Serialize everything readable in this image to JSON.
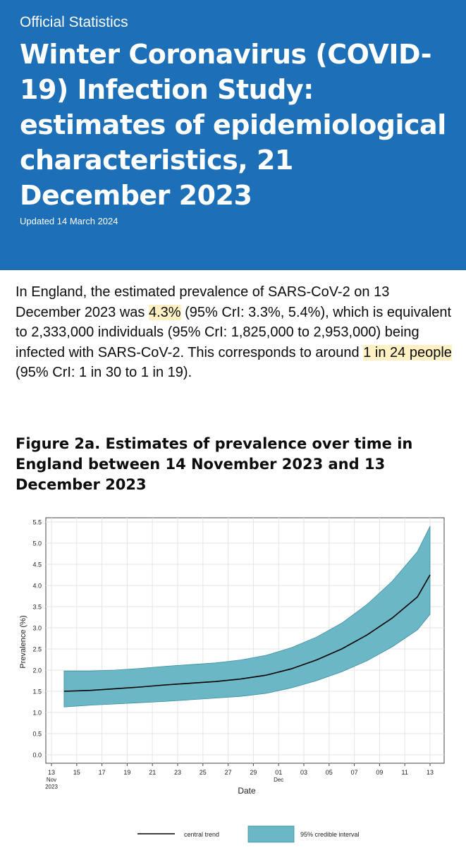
{
  "header": {
    "caption": "Official Statistics",
    "title": "Winter Coronavirus (COVID-19) Infection Study: estimates of epidemiological characteristics, 21 December 2023",
    "updated": "Updated 14 March 2024"
  },
  "summary": {
    "part1": "In England, the estimated prevalence of SARS-CoV-2 on 13 December 2023 was ",
    "highlight1": "4.3%",
    "part2": " (95% CrI: 3.3%, 5.4%), which is equivalent to 2,333,000 individuals (95% CrI: 1,825,000 to 2,953,000) being infected with SARS-CoV-2. This corresponds to around ",
    "highlight2": "1 in 24 people",
    "part3": " (95% CrI: 1 in 30 to 1 in 19)."
  },
  "figure": {
    "title": "Figure 2a. Estimates of prevalence over time in England between 14 November 2023 and 13 December 2023"
  },
  "colors": {
    "header_bg": "#1d70b8",
    "highlight": "#fff1c4",
    "interval_fill": "#6bb7c5",
    "interval_edge": "#3d8fa0",
    "trend_line": "#000000"
  },
  "chart_data": {
    "type": "area",
    "title": "",
    "xlabel": "Date",
    "ylabel": "Prevalence (%)",
    "ylim": [
      -0.2,
      5.6
    ],
    "yticks": [
      "0.0",
      "0.5",
      "1.0",
      "1.5",
      "2.0",
      "2.5",
      "3.0",
      "3.5",
      "4.0",
      "4.5",
      "5.0",
      "5.5"
    ],
    "x_tick_labels": [
      {
        "day": 0,
        "lines": [
          "13",
          "Nov",
          "2023"
        ]
      },
      {
        "day": 2,
        "lines": [
          "15"
        ]
      },
      {
        "day": 4,
        "lines": [
          "17"
        ]
      },
      {
        "day": 6,
        "lines": [
          "19"
        ]
      },
      {
        "day": 8,
        "lines": [
          "21"
        ]
      },
      {
        "day": 10,
        "lines": [
          "23"
        ]
      },
      {
        "day": 12,
        "lines": [
          "25"
        ]
      },
      {
        "day": 14,
        "lines": [
          "27"
        ]
      },
      {
        "day": 16,
        "lines": [
          "29"
        ]
      },
      {
        "day": 18,
        "lines": [
          "01",
          "Dec"
        ]
      },
      {
        "day": 20,
        "lines": [
          "03"
        ]
      },
      {
        "day": 22,
        "lines": [
          "05"
        ]
      },
      {
        "day": 24,
        "lines": [
          "07"
        ]
      },
      {
        "day": 26,
        "lines": [
          "09"
        ]
      },
      {
        "day": 28,
        "lines": [
          "11"
        ]
      },
      {
        "day": 30,
        "lines": [
          "13"
        ]
      }
    ],
    "x": [
      "2023-11-14",
      "2023-11-16",
      "2023-11-18",
      "2023-11-20",
      "2023-11-22",
      "2023-11-24",
      "2023-11-26",
      "2023-11-28",
      "2023-11-30",
      "2023-12-02",
      "2023-12-04",
      "2023-12-06",
      "2023-12-08",
      "2023-12-10",
      "2023-12-12",
      "2023-12-13"
    ],
    "series": [
      {
        "name": "central trend",
        "values": [
          1.5,
          1.52,
          1.56,
          1.6,
          1.65,
          1.69,
          1.73,
          1.79,
          1.88,
          2.03,
          2.24,
          2.5,
          2.83,
          3.23,
          3.73,
          4.25
        ]
      },
      {
        "name": "95% credible interval",
        "lower": [
          1.13,
          1.17,
          1.2,
          1.23,
          1.26,
          1.3,
          1.34,
          1.38,
          1.45,
          1.58,
          1.75,
          1.96,
          2.22,
          2.55,
          2.95,
          3.32
        ],
        "upper": [
          1.98,
          1.98,
          2.0,
          2.04,
          2.09,
          2.13,
          2.17,
          2.24,
          2.35,
          2.53,
          2.78,
          3.11,
          3.55,
          4.1,
          4.8,
          5.4
        ]
      }
    ],
    "legend": [
      "central trend",
      "95% credible interval"
    ],
    "grid": true,
    "legend_position": "bottom"
  }
}
